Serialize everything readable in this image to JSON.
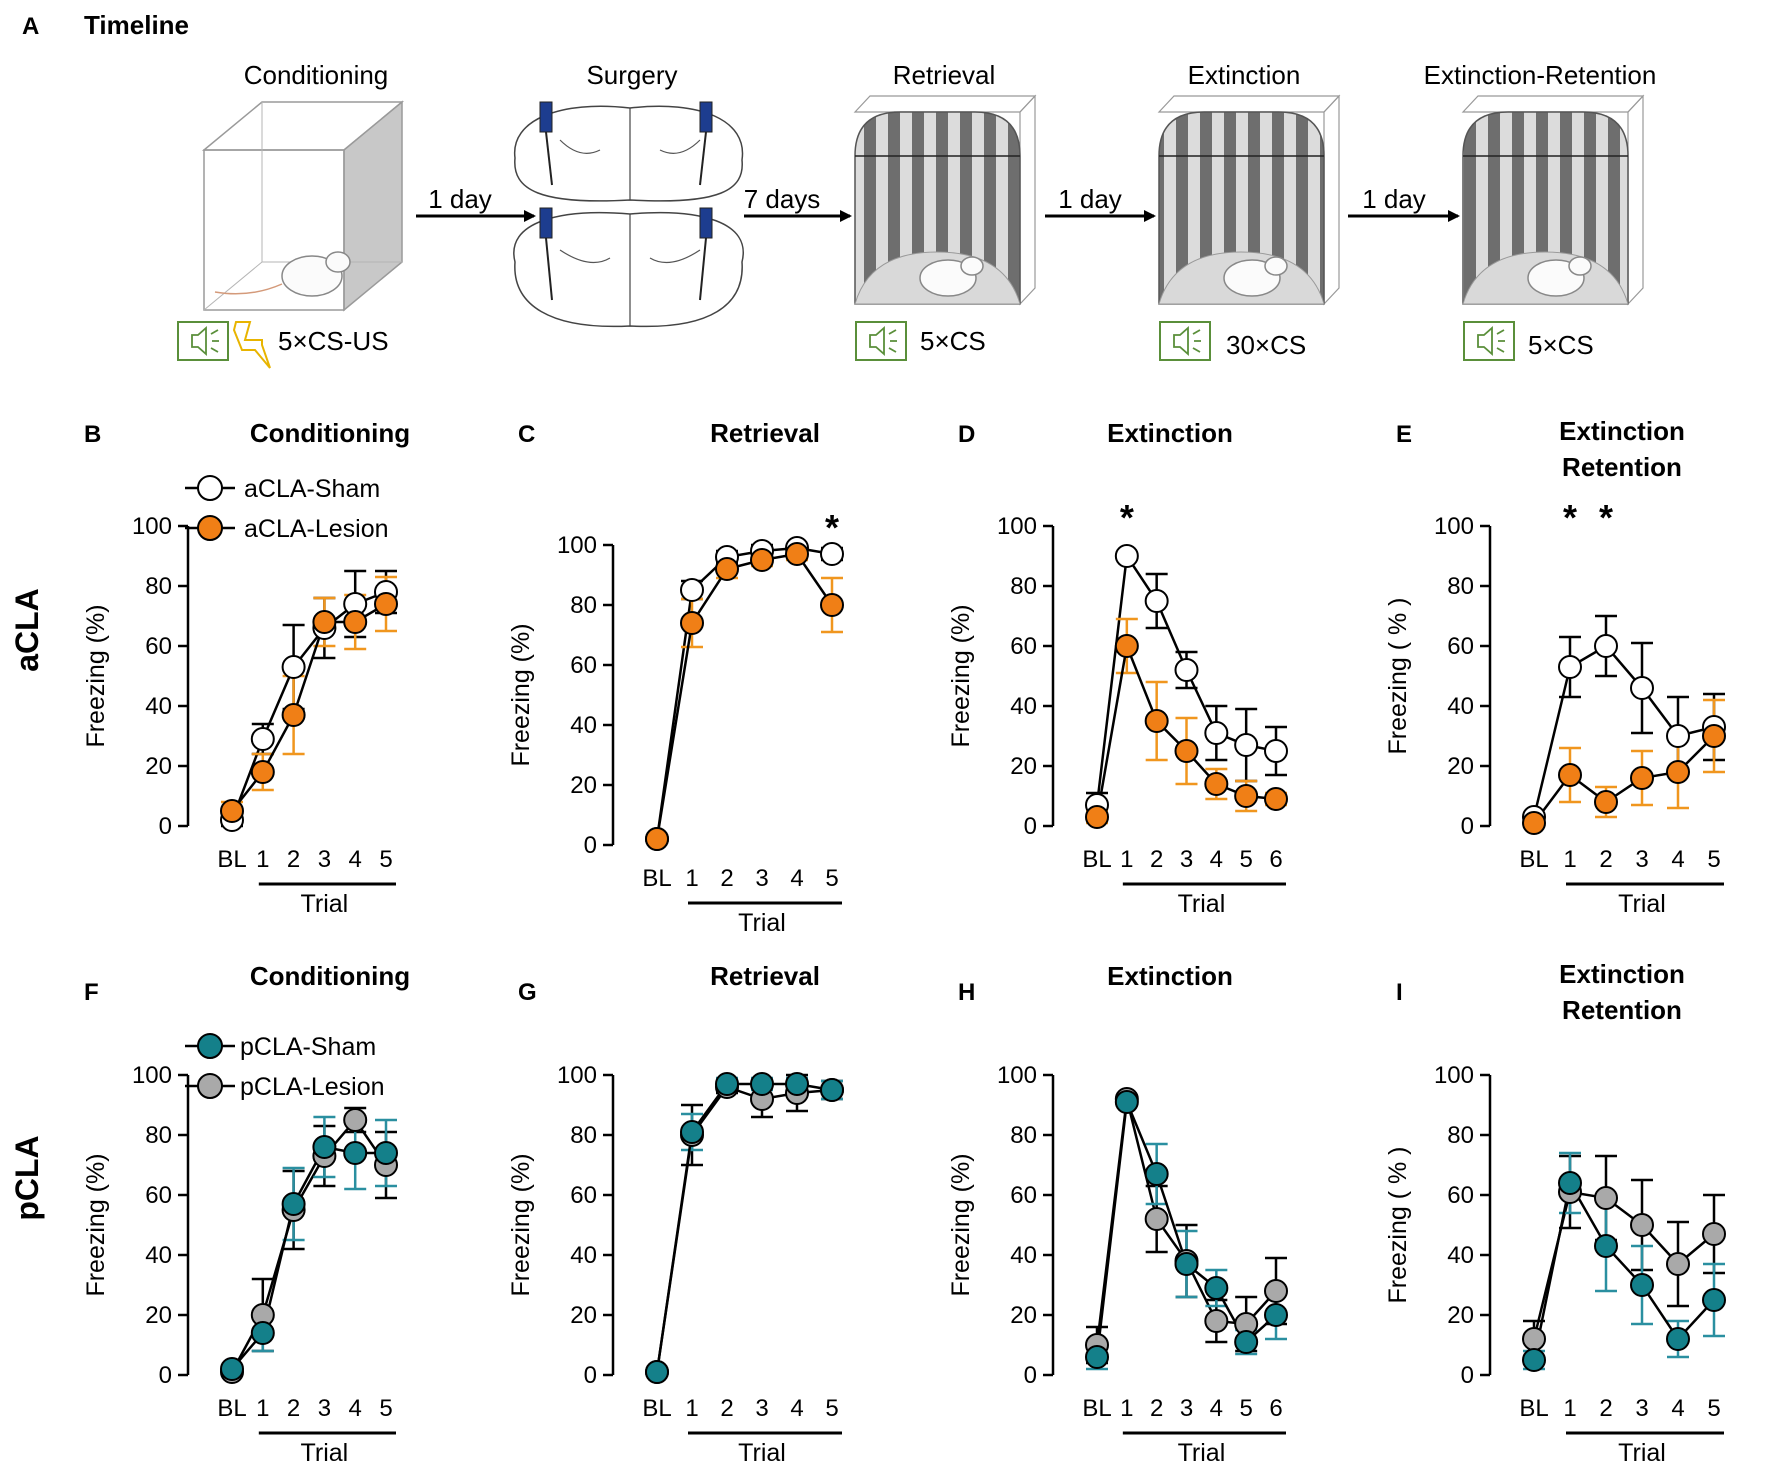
{
  "panel_a": {
    "letter": "A",
    "title": "Timeline",
    "stages": [
      {
        "name": "Conditioning",
        "stimulus": "5×CS-US"
      },
      {
        "name": "Surgery",
        "stimulus": ""
      },
      {
        "name": "Retrieval",
        "stimulus": "5×CS"
      },
      {
        "name": "Extinction",
        "stimulus": "30×CS"
      },
      {
        "name": "Extinction-Retention",
        "stimulus": "5×CS"
      }
    ],
    "arrows": [
      "1 day",
      "7 days",
      "1 day",
      "1 day"
    ]
  },
  "rows": {
    "top": "aCLA",
    "bottom": "pCLA"
  },
  "legends": {
    "top": [
      "aCLA-Sham",
      "aCLA-Lesion"
    ],
    "bottom": [
      "pCLA-Sham",
      "pCLA-Lesion"
    ]
  },
  "colors": {
    "aCLA-Sham": "#ffffff",
    "aCLA-Lesion": "#f07f16",
    "aCLA-Lesion-err": "#f0961e",
    "pCLA-Sham": "#14808a",
    "pCLA-Lesion": "#a9a9a9",
    "pCLA-Sham-err": "#2a8fa0"
  },
  "chart_data": [
    {
      "panel": "B",
      "type": "line",
      "title": "Conditioning",
      "ylabel": "Freezing (%)",
      "xlabel": "Trial",
      "ylim": [
        0,
        100
      ],
      "yticks": [
        0,
        20,
        40,
        60,
        80,
        100
      ],
      "categories": [
        "BL",
        "1",
        "2",
        "3",
        "4",
        "5"
      ],
      "series": [
        {
          "name": "aCLA-Sham",
          "values": [
            2,
            29,
            53,
            66,
            74,
            78
          ],
          "errors": [
            2,
            5,
            14,
            10,
            11,
            7
          ]
        },
        {
          "name": "aCLA-Lesion",
          "values": [
            5,
            18,
            37,
            68,
            68,
            74
          ],
          "errors": [
            3,
            6,
            13,
            8,
            9,
            9
          ]
        }
      ],
      "annotations": []
    },
    {
      "panel": "C",
      "type": "line",
      "title": "Retrieval",
      "ylabel": "Freezing (%)",
      "xlabel": "Trial",
      "ylim": [
        0,
        100
      ],
      "yticks": [
        0,
        20,
        40,
        60,
        80,
        100
      ],
      "categories": [
        "BL",
        "1",
        "2",
        "3",
        "4",
        "5"
      ],
      "series": [
        {
          "name": "aCLA-Sham",
          "values": [
            2,
            85,
            96,
            98,
            99,
            97
          ],
          "errors": [
            0,
            3,
            2,
            2,
            1,
            2
          ]
        },
        {
          "name": "aCLA-Lesion",
          "values": [
            2,
            74,
            92,
            95,
            97,
            80
          ],
          "errors": [
            0,
            8,
            3,
            2,
            2,
            9
          ]
        }
      ],
      "annotations": [
        {
          "index": 5,
          "text": "*"
        }
      ]
    },
    {
      "panel": "D",
      "type": "line",
      "title": "Extinction",
      "ylabel": "Freezing (%)",
      "xlabel": "Trial",
      "ylim": [
        0,
        100
      ],
      "yticks": [
        0,
        20,
        40,
        60,
        80,
        100
      ],
      "categories": [
        "BL",
        "1",
        "2",
        "3",
        "4",
        "5",
        "6"
      ],
      "series": [
        {
          "name": "aCLA-Sham",
          "values": [
            7,
            90,
            75,
            52,
            31,
            27,
            25
          ],
          "errors": [
            4,
            1,
            9,
            6,
            9,
            12,
            8
          ]
        },
        {
          "name": "aCLA-Lesion",
          "values": [
            3,
            60,
            35,
            25,
            14,
            10,
            9
          ],
          "errors": [
            2,
            9,
            13,
            11,
            5,
            5,
            2
          ]
        }
      ],
      "annotations": [
        {
          "index": 1,
          "text": "*"
        }
      ]
    },
    {
      "panel": "E",
      "type": "line",
      "title": [
        "Extinction",
        "Retention"
      ],
      "ylabel": "Freezing ( % )",
      "xlabel": "Trial",
      "ylim": [
        0,
        100
      ],
      "yticks": [
        0,
        20,
        40,
        60,
        80,
        100
      ],
      "categories": [
        "BL",
        "1",
        "2",
        "3",
        "4",
        "5"
      ],
      "series": [
        {
          "name": "aCLA-Sham",
          "values": [
            3,
            53,
            60,
            46,
            30,
            33
          ],
          "errors": [
            1,
            10,
            10,
            15,
            13,
            11
          ]
        },
        {
          "name": "aCLA-Lesion",
          "values": [
            1,
            17,
            8,
            16,
            18,
            30
          ],
          "errors": [
            1,
            9,
            5,
            9,
            12,
            12
          ]
        }
      ],
      "annotations": [
        {
          "index": 1,
          "text": "*"
        },
        {
          "index": 2,
          "text": "*"
        }
      ]
    },
    {
      "panel": "F",
      "type": "line",
      "title": "Conditioning",
      "ylabel": "Freezing (%)",
      "xlabel": "Trial",
      "ylim": [
        0,
        100
      ],
      "yticks": [
        0,
        20,
        40,
        60,
        80,
        100
      ],
      "categories": [
        "BL",
        "1",
        "2",
        "3",
        "4",
        "5"
      ],
      "series": [
        {
          "name": "pCLA-Lesion",
          "values": [
            1,
            20,
            55,
            73,
            85,
            70
          ],
          "errors": [
            1,
            12,
            13,
            10,
            4,
            11
          ]
        },
        {
          "name": "pCLA-Sham",
          "values": [
            2,
            14,
            57,
            76,
            74,
            74
          ],
          "errors": [
            1,
            6,
            12,
            10,
            12,
            11
          ]
        }
      ],
      "annotations": []
    },
    {
      "panel": "G",
      "type": "line",
      "title": "Retrieval",
      "ylabel": "Freezing (%)",
      "xlabel": "Trial",
      "ylim": [
        0,
        100
      ],
      "yticks": [
        0,
        20,
        40,
        60,
        80,
        100
      ],
      "categories": [
        "BL",
        "1",
        "2",
        "3",
        "4",
        "5"
      ],
      "series": [
        {
          "name": "pCLA-Lesion",
          "values": [
            1,
            80,
            96,
            92,
            94,
            95
          ],
          "errors": [
            0,
            10,
            2,
            6,
            6,
            3
          ]
        },
        {
          "name": "pCLA-Sham",
          "values": [
            1,
            81,
            97,
            97,
            97,
            95
          ],
          "errors": [
            0,
            6,
            2,
            2,
            2,
            3
          ]
        }
      ],
      "annotations": []
    },
    {
      "panel": "H",
      "type": "line",
      "title": "Extinction",
      "ylabel": "Freezing (%)",
      "xlabel": "Trial",
      "ylim": [
        0,
        100
      ],
      "yticks": [
        0,
        20,
        40,
        60,
        80,
        100
      ],
      "categories": [
        "BL",
        "1",
        "2",
        "3",
        "4",
        "5",
        "6"
      ],
      "series": [
        {
          "name": "pCLA-Lesion",
          "values": [
            10,
            92,
            52,
            38,
            18,
            17,
            28
          ],
          "errors": [
            6,
            1,
            11,
            12,
            7,
            9,
            11
          ]
        },
        {
          "name": "pCLA-Sham",
          "values": [
            6,
            91,
            67,
            37,
            29,
            11,
            20
          ],
          "errors": [
            4,
            1,
            10,
            11,
            6,
            4,
            8
          ]
        }
      ],
      "annotations": []
    },
    {
      "panel": "I",
      "type": "line",
      "title": [
        "Extinction",
        "Retention"
      ],
      "ylabel": "Freezing ( % )",
      "xlabel": "Trial",
      "ylim": [
        0,
        100
      ],
      "yticks": [
        0,
        20,
        40,
        60,
        80,
        100
      ],
      "categories": [
        "BL",
        "1",
        "2",
        "3",
        "4",
        "5"
      ],
      "series": [
        {
          "name": "pCLA-Lesion",
          "values": [
            12,
            61,
            59,
            50,
            37,
            47
          ],
          "errors": [
            6,
            12,
            14,
            15,
            14,
            13
          ]
        },
        {
          "name": "pCLA-Sham",
          "values": [
            5,
            64,
            43,
            30,
            12,
            25
          ],
          "errors": [
            3,
            10,
            15,
            13,
            6,
            12
          ]
        }
      ],
      "annotations": []
    }
  ]
}
